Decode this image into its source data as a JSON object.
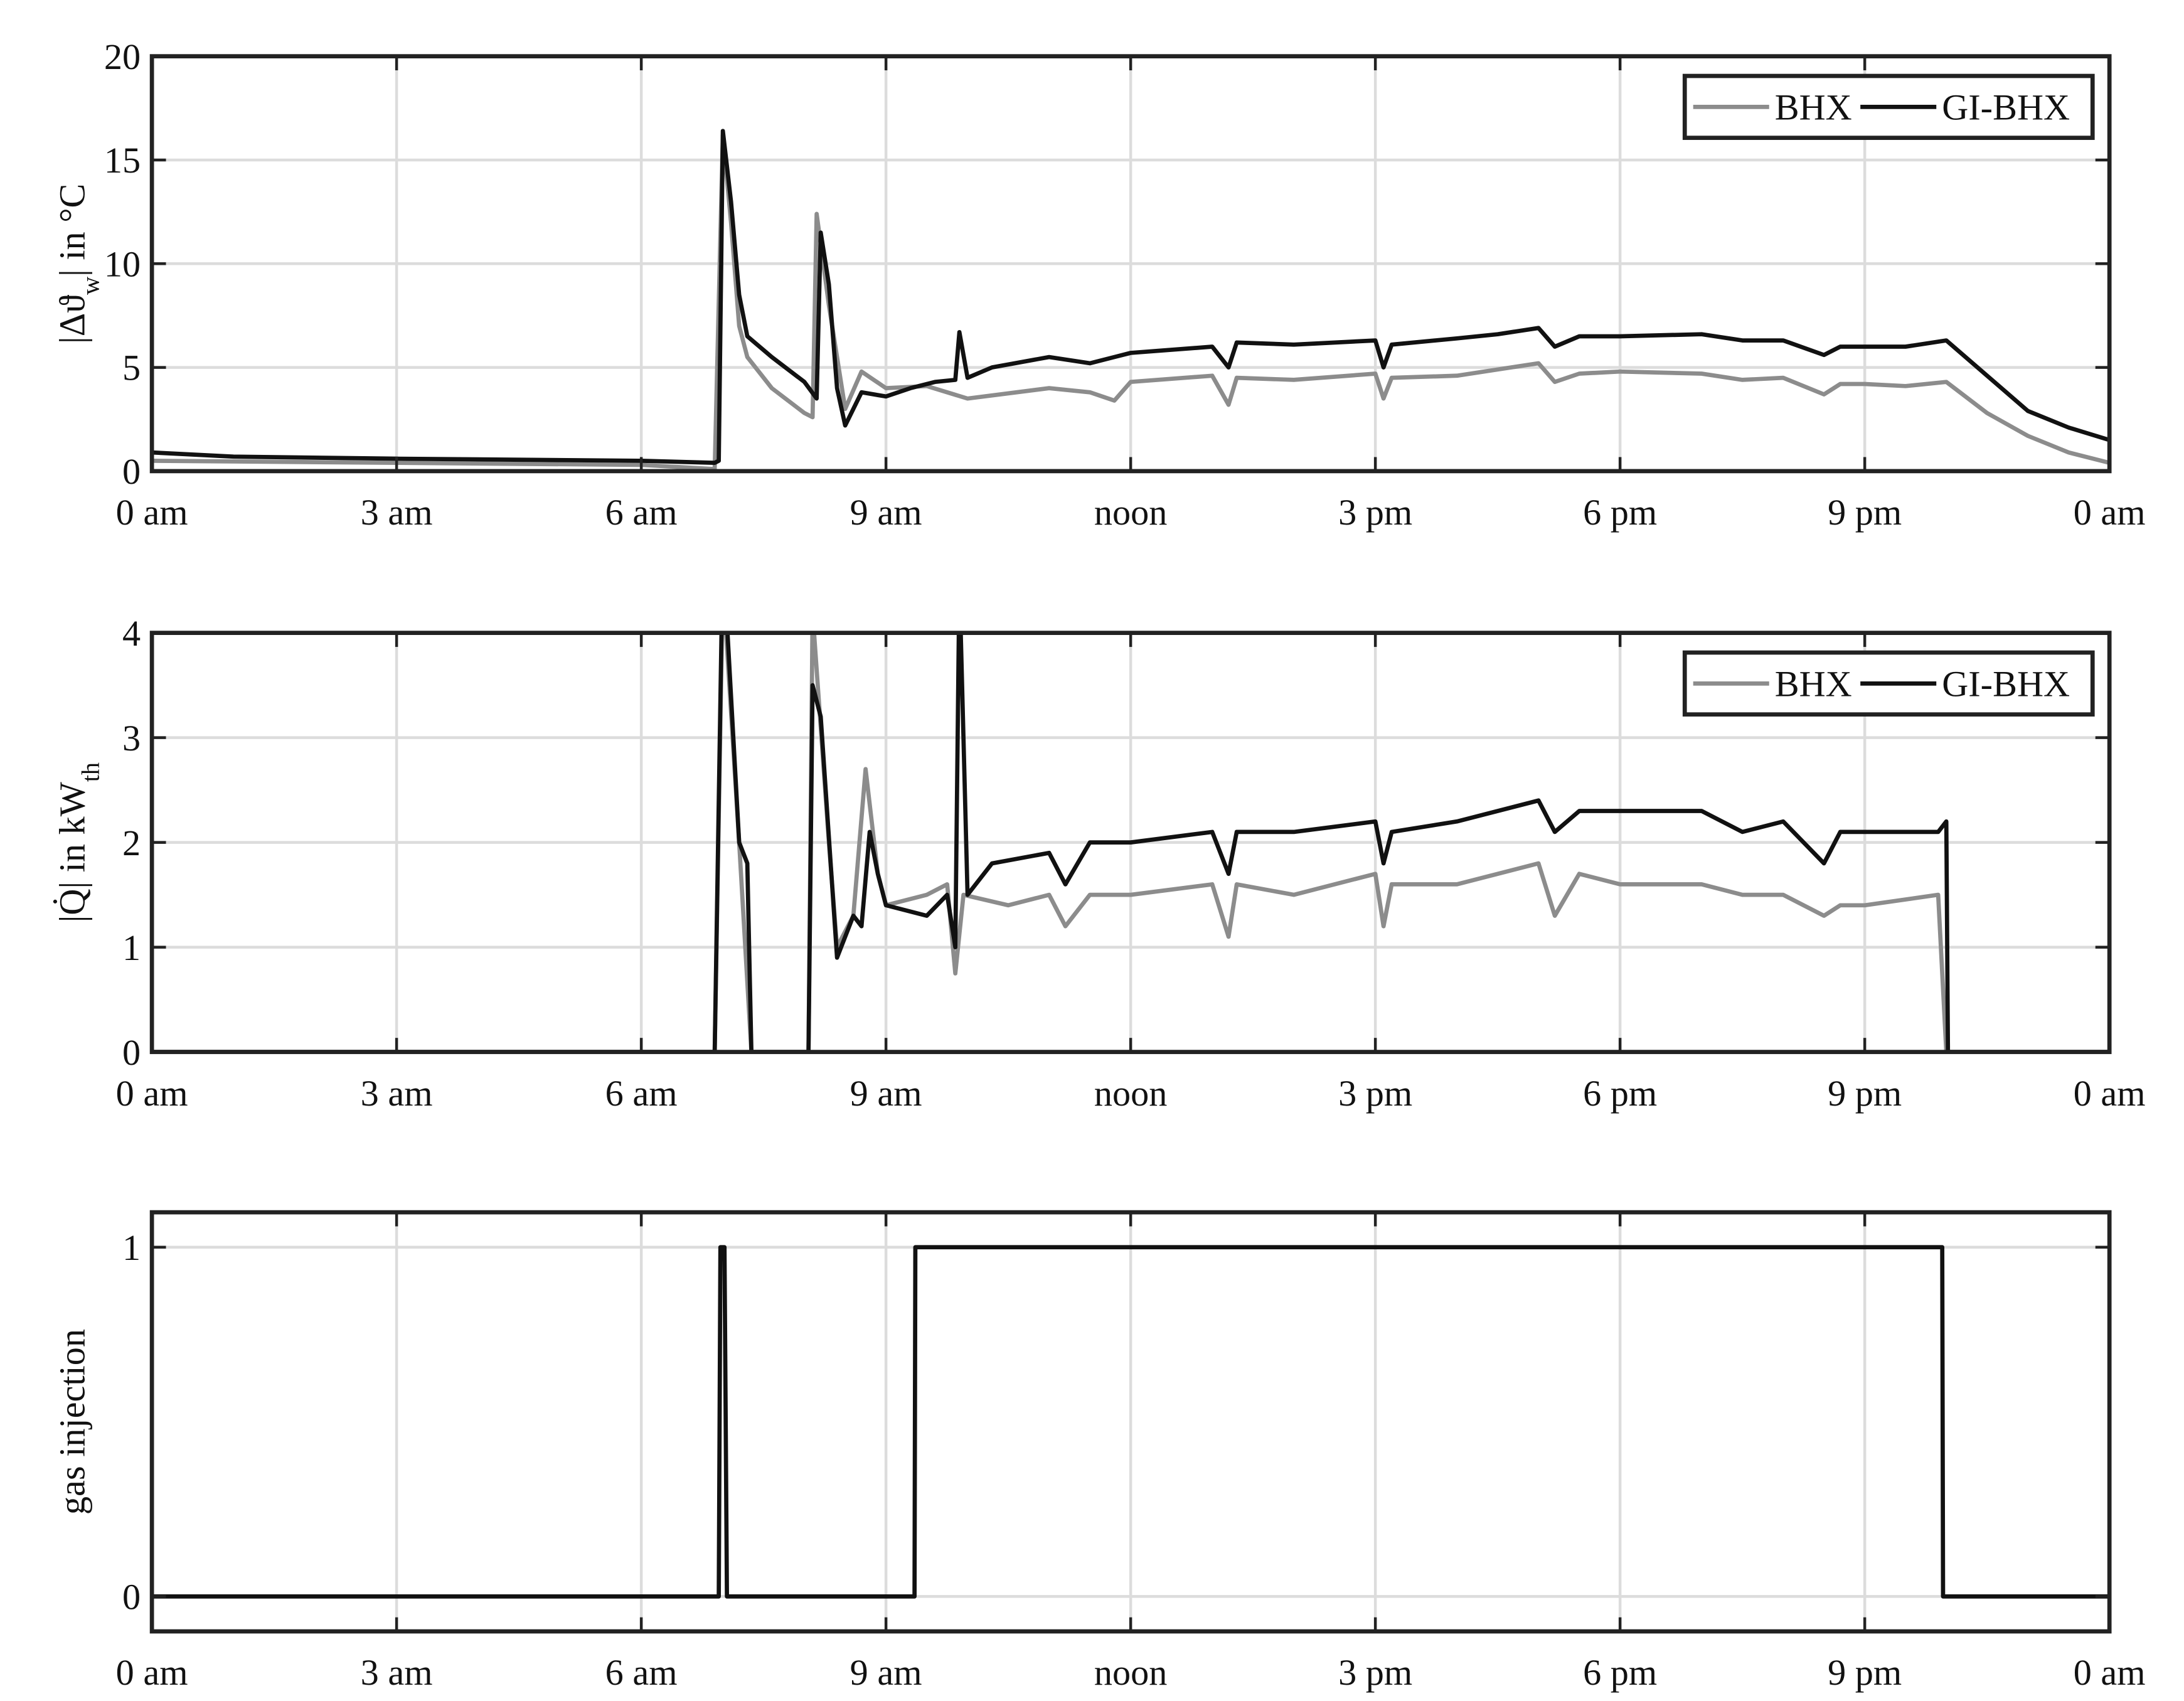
{
  "chart_data": [
    {
      "type": "line",
      "ylabel": [
        "|Δϑ",
        "w",
        "| in °C"
      ],
      "legend": "upper right",
      "grid": true,
      "xlim": [
        0,
        24
      ],
      "xticks": [
        {
          "value": 0,
          "label": "0 am"
        },
        {
          "value": 3,
          "label": "3 am"
        },
        {
          "value": 6,
          "label": "6 am"
        },
        {
          "value": 9,
          "label": "9 am"
        },
        {
          "value": 12,
          "label": "noon"
        },
        {
          "value": 15,
          "label": "3 pm"
        },
        {
          "value": 18,
          "label": "6 pm"
        },
        {
          "value": 21,
          "label": "9 pm"
        },
        {
          "value": 24,
          "label": "0 am"
        }
      ],
      "ylim": [
        0,
        20
      ],
      "yticks": [
        0,
        5,
        10,
        15,
        20
      ],
      "series": [
        {
          "name": "BHX",
          "color": "#8c8c8c",
          "x": [
            0,
            3,
            6,
            6.9,
            7.0,
            7.1,
            7.2,
            7.3,
            7.6,
            8,
            8.1,
            8.15,
            8.3,
            8.5,
            8.7,
            9,
            9.5,
            10,
            11,
            11.5,
            11.8,
            12,
            13,
            13.2,
            13.3,
            14,
            15,
            15.1,
            15.2,
            16,
            17,
            17.2,
            17.5,
            18,
            19,
            19.5,
            20,
            20.5,
            20.7,
            21,
            21.5,
            22,
            22.5,
            23,
            23.5,
            24
          ],
          "values": [
            0.5,
            0.4,
            0.3,
            0.1,
            16.2,
            12,
            7,
            5.5,
            4,
            2.8,
            2.6,
            12.4,
            8,
            3,
            4.8,
            4,
            4.1,
            3.5,
            4,
            3.8,
            3.4,
            4.3,
            4.6,
            3.2,
            4.5,
            4.4,
            4.7,
            3.5,
            4.5,
            4.6,
            5.2,
            4.3,
            4.7,
            4.8,
            4.7,
            4.4,
            4.5,
            3.7,
            4.2,
            4.2,
            4.1,
            4.3,
            2.8,
            1.7,
            0.9,
            0.4
          ]
        },
        {
          "name": "GI-BHX",
          "color": "#111111",
          "x": [
            0,
            1,
            3,
            6,
            6.9,
            6.95,
            7.0,
            7.1,
            7.2,
            7.3,
            7.6,
            8.0,
            8.15,
            8.2,
            8.3,
            8.4,
            8.5,
            8.7,
            9,
            9.3,
            9.6,
            9.85,
            9.9,
            10,
            10.3,
            11,
            11.5,
            12,
            13,
            13.2,
            13.3,
            14,
            15,
            15.1,
            15.2,
            16,
            16.5,
            17,
            17.2,
            17.5,
            18,
            19,
            19.5,
            20,
            20.5,
            20.7,
            21,
            21.5,
            22,
            22.5,
            23,
            23.5,
            24
          ],
          "values": [
            0.9,
            0.7,
            0.6,
            0.5,
            0.4,
            0.5,
            16.4,
            13,
            8.5,
            6.5,
            5.5,
            4.3,
            3.5,
            11.5,
            9,
            4,
            2.2,
            3.8,
            3.6,
            4,
            4.3,
            4.4,
            6.7,
            4.5,
            5,
            5.5,
            5.2,
            5.7,
            6,
            5.0,
            6.2,
            6.1,
            6.3,
            5.0,
            6.1,
            6.4,
            6.6,
            6.9,
            6.0,
            6.5,
            6.5,
            6.6,
            6.3,
            6.3,
            5.6,
            6.0,
            6.0,
            6.0,
            6.3,
            4.6,
            2.9,
            2.1,
            1.5
          ]
        }
      ]
    },
    {
      "type": "line",
      "ylabel": [
        "|Q̇| in kW",
        "th"
      ],
      "legend": "upper right",
      "grid": true,
      "xlim": [
        0,
        24
      ],
      "xticks": [
        {
          "value": 0,
          "label": "0 am"
        },
        {
          "value": 3,
          "label": "3 am"
        },
        {
          "value": 6,
          "label": "6 am"
        },
        {
          "value": 9,
          "label": "9 am"
        },
        {
          "value": 12,
          "label": "noon"
        },
        {
          "value": 15,
          "label": "3 pm"
        },
        {
          "value": 18,
          "label": "6 pm"
        },
        {
          "value": 21,
          "label": "9 pm"
        },
        {
          "value": 24,
          "label": "0 am"
        }
      ],
      "ylim": [
        0,
        4
      ],
      "yticks": [
        0,
        1,
        2,
        3,
        4
      ],
      "series": [
        {
          "name": "BHX",
          "color": "#8c8c8c",
          "x": [
            0,
            6.9,
            7.0,
            7.2,
            7.35,
            8.05,
            8.1,
            8.3,
            8.4,
            8.6,
            8.75,
            8.9,
            9,
            9.5,
            9.75,
            9.85,
            9.95,
            10.5,
            11,
            11.2,
            11.5,
            12,
            13,
            13.2,
            13.3,
            14,
            15,
            15.1,
            15.2,
            16,
            17,
            17.2,
            17.5,
            18,
            19,
            19.5,
            20,
            20.5,
            20.7,
            21,
            21.9,
            22,
            24
          ],
          "values": [
            0,
            0,
            4.5,
            2,
            0,
            0,
            4.2,
            2,
            1.0,
            1.3,
            2.7,
            1.7,
            1.4,
            1.5,
            1.6,
            0.75,
            1.5,
            1.4,
            1.5,
            1.2,
            1.5,
            1.5,
            1.6,
            1.1,
            1.6,
            1.5,
            1.7,
            1.2,
            1.6,
            1.6,
            1.8,
            1.3,
            1.7,
            1.6,
            1.6,
            1.5,
            1.5,
            1.3,
            1.4,
            1.4,
            1.5,
            0,
            0
          ]
        },
        {
          "name": "GI-BHX",
          "color": "#111111",
          "x": [
            0,
            6.9,
            7.0,
            7.2,
            7.3,
            7.35,
            8.05,
            8.1,
            8.2,
            8.4,
            8.6,
            8.7,
            8.8,
            8.9,
            9,
            9.5,
            9.75,
            9.85,
            9.9,
            10,
            10.3,
            11,
            11.2,
            11.5,
            12,
            13,
            13.2,
            13.3,
            14,
            15,
            15.1,
            15.2,
            16,
            17,
            17.2,
            17.5,
            18,
            19,
            19.5,
            20,
            20.5,
            20.7,
            21,
            21.9,
            22,
            22.02,
            24
          ],
          "values": [
            0,
            0,
            4.8,
            2,
            1.8,
            0,
            0,
            3.5,
            3.2,
            0.9,
            1.3,
            1.2,
            2.1,
            1.7,
            1.4,
            1.3,
            1.5,
            1.0,
            4.5,
            1.5,
            1.8,
            1.9,
            1.6,
            2.0,
            2.0,
            2.1,
            1.7,
            2.1,
            2.1,
            2.2,
            1.8,
            2.1,
            2.2,
            2.4,
            2.1,
            2.3,
            2.3,
            2.3,
            2.1,
            2.2,
            1.8,
            2.1,
            2.1,
            2.1,
            2.2,
            0,
            0
          ]
        }
      ]
    },
    {
      "type": "line",
      "ylabel": [
        "gas injection"
      ],
      "grid": true,
      "xlim": [
        0,
        24
      ],
      "xticks": [
        {
          "value": 0,
          "label": "0 am"
        },
        {
          "value": 3,
          "label": "3 am"
        },
        {
          "value": 6,
          "label": "6 am"
        },
        {
          "value": 9,
          "label": "9 am"
        },
        {
          "value": 12,
          "label": "noon"
        },
        {
          "value": 15,
          "label": "3 pm"
        },
        {
          "value": 18,
          "label": "6 pm"
        },
        {
          "value": 21,
          "label": "9 pm"
        },
        {
          "value": 24,
          "label": "0 am"
        }
      ],
      "ylim": [
        -0.1,
        1.1
      ],
      "yticks": [
        0,
        1
      ],
      "series": [
        {
          "color": "#111111",
          "x": [
            0,
            6.95,
            6.97,
            7.02,
            7.05,
            9.35,
            9.36,
            21.95,
            21.96,
            24
          ],
          "values": [
            0,
            0,
            1,
            1,
            0,
            0,
            1,
            1,
            0,
            0
          ]
        }
      ]
    }
  ]
}
